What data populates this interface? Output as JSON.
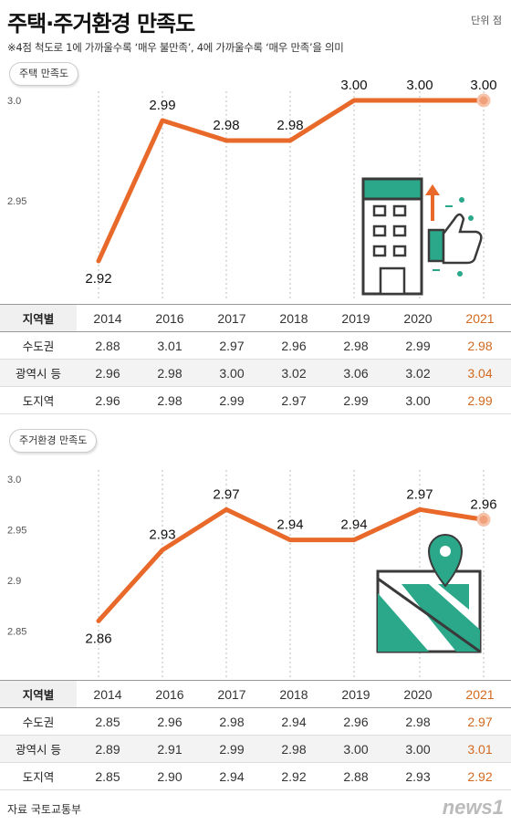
{
  "header": {
    "title": "주택·주거환경 만족도",
    "unit": "단위 점",
    "note": "※4점 척도로 1에 가까울수록 ‘매우 불만족’, 4에 가까울수록 ‘매우 만족’을 의미"
  },
  "colors": {
    "line": "#e8692a",
    "highlight": "#d2691e",
    "icon_green": "#2ba88a",
    "icon_dark": "#3a3a3a"
  },
  "chart_data": [
    {
      "type": "line",
      "title": "주택 만족도",
      "x": [
        "2014",
        "2016",
        "2017",
        "2018",
        "2019",
        "2020",
        "2021"
      ],
      "values": [
        2.92,
        2.99,
        2.98,
        2.98,
        3.0,
        3.0,
        3.0
      ],
      "value_labels": [
        "2.92",
        "2.99",
        "2.98",
        "2.98",
        "3.00",
        "3.00",
        "3.00"
      ],
      "y_ticks": [
        "3.0",
        "2.95"
      ],
      "grid": "vertical dashed",
      "icon": "building-thumbs-up-icon"
    },
    {
      "type": "line",
      "title": "주거환경 만족도",
      "x": [
        "2014",
        "2016",
        "2017",
        "2018",
        "2019",
        "2020",
        "2021"
      ],
      "values": [
        2.86,
        2.93,
        2.97,
        2.94,
        2.94,
        2.97,
        2.96
      ],
      "value_labels": [
        "2.86",
        "2.93",
        "2.97",
        "2.94",
        "2.94",
        "2.97",
        "2.96"
      ],
      "y_ticks": [
        "3.0",
        "2.95",
        "2.9",
        "2.85"
      ],
      "grid": "vertical dashed",
      "icon": "map-pin-icon"
    }
  ],
  "tables": [
    {
      "header_label": "지역별",
      "years": [
        "2014",
        "2016",
        "2017",
        "2018",
        "2019",
        "2020",
        "2021"
      ],
      "rows": [
        {
          "label": "수도권",
          "values": [
            "2.88",
            "3.01",
            "2.97",
            "2.96",
            "2.98",
            "2.99",
            "2.98"
          ]
        },
        {
          "label": "광역시 등",
          "values": [
            "2.96",
            "2.98",
            "3.00",
            "3.02",
            "3.06",
            "3.02",
            "3.04"
          ]
        },
        {
          "label": "도지역",
          "values": [
            "2.96",
            "2.98",
            "2.99",
            "2.97",
            "2.99",
            "3.00",
            "2.99"
          ]
        }
      ]
    },
    {
      "header_label": "지역별",
      "years": [
        "2014",
        "2016",
        "2017",
        "2018",
        "2019",
        "2020",
        "2021"
      ],
      "rows": [
        {
          "label": "수도권",
          "values": [
            "2.85",
            "2.96",
            "2.98",
            "2.94",
            "2.96",
            "2.98",
            "2.97"
          ]
        },
        {
          "label": "광역시 등",
          "values": [
            "2.89",
            "2.91",
            "2.99",
            "2.98",
            "3.00",
            "3.00",
            "3.01"
          ]
        },
        {
          "label": "도지역",
          "values": [
            "2.85",
            "2.90",
            "2.94",
            "2.92",
            "2.88",
            "2.93",
            "2.92"
          ]
        }
      ]
    }
  ],
  "footer": {
    "source": "자료 국토교통부",
    "logo": "news1"
  }
}
